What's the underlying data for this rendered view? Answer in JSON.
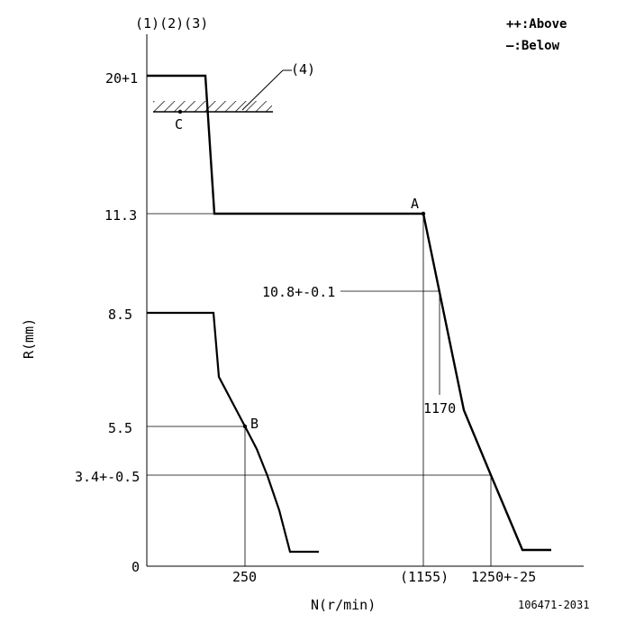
{
  "header": {
    "items": "(1)(2)(3)"
  },
  "legend": {
    "above": "++:Above",
    "below": "—:Below"
  },
  "axes": {
    "y_label": "R(mm)",
    "x_label": "N(r/min)"
  },
  "y_ticks": {
    "t20": "20+1",
    "t11_3": "11.3",
    "t8_5": "8.5",
    "t5_5": "5.5",
    "t3_4": "3.4+-0.5",
    "t0": "0"
  },
  "x_ticks": {
    "t250": "250",
    "t1155": "(1155)",
    "t1250": "1250+-25"
  },
  "annotations": {
    "stopper": "(4)",
    "point_a": "A",
    "point_b": "B",
    "point_c": "C",
    "set_10_8": "10.8+-0.1",
    "set_1170": "1170"
  },
  "footer": {
    "code": "106471-2031"
  }
}
